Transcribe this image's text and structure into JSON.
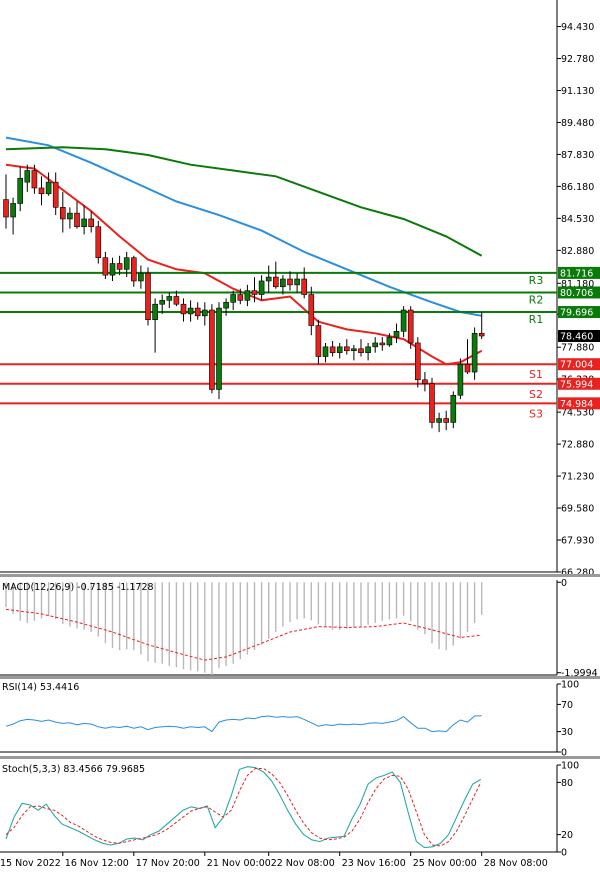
{
  "chart_data": [
    {
      "type": "candlestick",
      "panel": "price",
      "ylim": [
        66.28,
        95.8
      ],
      "y_ticks": [
        "94.430",
        "92.780",
        "91.130",
        "89.480",
        "87.830",
        "86.180",
        "84.530",
        "82.880",
        "81.180",
        "79.580",
        "77.880",
        "76.230",
        "74.530",
        "72.880",
        "71.230",
        "69.580",
        "67.930",
        "66.280"
      ],
      "x_ticks": [
        {
          "i": 0,
          "label": "15 Nov 2022"
        },
        {
          "i": 8,
          "label": "16 Nov 12:00"
        },
        {
          "i": 18,
          "label": "17 Nov 20:00"
        },
        {
          "i": 28,
          "label": "21 Nov 00:00"
        },
        {
          "i": 37,
          "label": "22 Nov 08:00"
        },
        {
          "i": 47,
          "label": "23 Nov 16:00"
        },
        {
          "i": 57,
          "label": "25 Nov 00:00"
        },
        {
          "i": 67,
          "label": "28 Nov 08:00"
        }
      ],
      "candles": [
        {
          "o": 85.5,
          "h": 86.8,
          "l": 84.0,
          "c": 84.6
        },
        {
          "o": 84.6,
          "h": 85.6,
          "l": 83.7,
          "c": 85.3
        },
        {
          "o": 85.3,
          "h": 87.2,
          "l": 84.9,
          "c": 86.6
        },
        {
          "o": 86.4,
          "h": 87.3,
          "l": 85.9,
          "c": 87.0
        },
        {
          "o": 87.0,
          "h": 87.3,
          "l": 85.8,
          "c": 86.1
        },
        {
          "o": 86.1,
          "h": 86.7,
          "l": 85.2,
          "c": 85.8
        },
        {
          "o": 85.8,
          "h": 86.9,
          "l": 85.7,
          "c": 86.4
        },
        {
          "o": 86.4,
          "h": 86.9,
          "l": 84.7,
          "c": 85.1
        },
        {
          "o": 85.1,
          "h": 85.9,
          "l": 83.8,
          "c": 84.5
        },
        {
          "o": 84.5,
          "h": 85.1,
          "l": 84.0,
          "c": 84.8
        },
        {
          "o": 84.8,
          "h": 85.4,
          "l": 84.0,
          "c": 84.1
        },
        {
          "o": 84.1,
          "h": 85.2,
          "l": 83.7,
          "c": 84.5
        },
        {
          "o": 84.5,
          "h": 84.9,
          "l": 83.8,
          "c": 84.1
        },
        {
          "o": 84.1,
          "h": 84.4,
          "l": 82.2,
          "c": 82.5
        },
        {
          "o": 82.5,
          "h": 82.8,
          "l": 81.4,
          "c": 81.6
        },
        {
          "o": 81.6,
          "h": 82.5,
          "l": 81.3,
          "c": 82.2
        },
        {
          "o": 82.2,
          "h": 82.6,
          "l": 81.6,
          "c": 81.9
        },
        {
          "o": 81.9,
          "h": 82.8,
          "l": 81.5,
          "c": 82.5
        },
        {
          "o": 82.5,
          "h": 82.6,
          "l": 81.0,
          "c": 81.3
        },
        {
          "o": 81.3,
          "h": 82.1,
          "l": 80.9,
          "c": 81.7
        },
        {
          "o": 81.7,
          "h": 82.0,
          "l": 79.0,
          "c": 79.3
        },
        {
          "o": 79.3,
          "h": 80.4,
          "l": 77.6,
          "c": 80.1
        },
        {
          "o": 80.1,
          "h": 80.6,
          "l": 79.6,
          "c": 80.3
        },
        {
          "o": 80.3,
          "h": 80.7,
          "l": 79.9,
          "c": 80.5
        },
        {
          "o": 80.5,
          "h": 80.8,
          "l": 80.0,
          "c": 80.1
        },
        {
          "o": 80.1,
          "h": 80.4,
          "l": 79.2,
          "c": 79.6
        },
        {
          "o": 79.6,
          "h": 80.3,
          "l": 79.2,
          "c": 79.9
        },
        {
          "o": 79.9,
          "h": 80.2,
          "l": 79.3,
          "c": 79.5
        },
        {
          "o": 79.5,
          "h": 80.2,
          "l": 79.0,
          "c": 79.8
        },
        {
          "o": 79.8,
          "h": 80.1,
          "l": 75.5,
          "c": 75.7
        },
        {
          "o": 75.7,
          "h": 80.2,
          "l": 75.2,
          "c": 79.9
        },
        {
          "o": 79.9,
          "h": 80.4,
          "l": 79.5,
          "c": 80.2
        },
        {
          "o": 80.2,
          "h": 80.8,
          "l": 79.8,
          "c": 80.6
        },
        {
          "o": 80.6,
          "h": 80.9,
          "l": 80.1,
          "c": 80.3
        },
        {
          "o": 80.3,
          "h": 81.1,
          "l": 80.0,
          "c": 80.8
        },
        {
          "o": 80.8,
          "h": 81.5,
          "l": 80.2,
          "c": 80.6
        },
        {
          "o": 80.6,
          "h": 81.6,
          "l": 80.3,
          "c": 81.3
        },
        {
          "o": 81.3,
          "h": 82.1,
          "l": 80.7,
          "c": 81.5
        },
        {
          "o": 81.5,
          "h": 82.3,
          "l": 80.9,
          "c": 81.0
        },
        {
          "o": 81.0,
          "h": 81.6,
          "l": 80.6,
          "c": 81.4
        },
        {
          "o": 81.4,
          "h": 81.8,
          "l": 80.8,
          "c": 81.1
        },
        {
          "o": 81.1,
          "h": 81.7,
          "l": 80.7,
          "c": 81.4
        },
        {
          "o": 81.4,
          "h": 82.0,
          "l": 80.4,
          "c": 80.6
        },
        {
          "o": 80.6,
          "h": 81.0,
          "l": 78.5,
          "c": 79.0
        },
        {
          "o": 79.0,
          "h": 79.3,
          "l": 77.0,
          "c": 77.4
        },
        {
          "o": 77.4,
          "h": 78.1,
          "l": 77.1,
          "c": 77.9
        },
        {
          "o": 77.9,
          "h": 78.2,
          "l": 77.4,
          "c": 77.6
        },
        {
          "o": 77.6,
          "h": 78.1,
          "l": 77.3,
          "c": 77.9
        },
        {
          "o": 77.9,
          "h": 78.3,
          "l": 77.5,
          "c": 77.7
        },
        {
          "o": 77.7,
          "h": 78.0,
          "l": 77.2,
          "c": 77.8
        },
        {
          "o": 77.8,
          "h": 78.3,
          "l": 77.4,
          "c": 77.6
        },
        {
          "o": 77.6,
          "h": 78.1,
          "l": 77.2,
          "c": 77.9
        },
        {
          "o": 77.9,
          "h": 78.4,
          "l": 77.6,
          "c": 78.1
        },
        {
          "o": 78.1,
          "h": 78.4,
          "l": 77.7,
          "c": 78.0
        },
        {
          "o": 78.0,
          "h": 78.6,
          "l": 77.9,
          "c": 78.4
        },
        {
          "o": 78.4,
          "h": 79.1,
          "l": 78.1,
          "c": 78.7
        },
        {
          "o": 78.7,
          "h": 80.0,
          "l": 78.4,
          "c": 79.8
        },
        {
          "o": 79.8,
          "h": 80.0,
          "l": 77.8,
          "c": 78.1
        },
        {
          "o": 78.1,
          "h": 78.4,
          "l": 75.8,
          "c": 76.2
        },
        {
          "o": 76.2,
          "h": 76.6,
          "l": 75.6,
          "c": 76.0
        },
        {
          "o": 76.0,
          "h": 76.3,
          "l": 73.7,
          "c": 74.0
        },
        {
          "o": 74.0,
          "h": 74.5,
          "l": 73.5,
          "c": 74.2
        },
        {
          "o": 74.2,
          "h": 74.6,
          "l": 73.6,
          "c": 74.0
        },
        {
          "o": 74.0,
          "h": 75.6,
          "l": 73.7,
          "c": 75.4
        },
        {
          "o": 75.4,
          "h": 77.3,
          "l": 75.2,
          "c": 77.0
        },
        {
          "o": 77.0,
          "h": 78.3,
          "l": 76.5,
          "c": 76.6
        },
        {
          "o": 76.6,
          "h": 78.9,
          "l": 76.2,
          "c": 78.6
        },
        {
          "o": 78.6,
          "h": 79.7,
          "l": 78.3,
          "c": 78.46
        }
      ],
      "moving_averages": [
        {
          "color": "#2a8fdc",
          "values": [
            [
              0,
              88.7
            ],
            [
              6,
              88.3
            ],
            [
              12,
              87.4
            ],
            [
              18,
              86.4
            ],
            [
              24,
              85.4
            ],
            [
              30,
              84.7
            ],
            [
              36,
              83.9
            ],
            [
              42,
              82.8
            ],
            [
              48,
              81.9
            ],
            [
              54,
              81.0
            ],
            [
              60,
              80.2
            ],
            [
              64,
              79.7
            ],
            [
              67,
              79.5
            ]
          ]
        },
        {
          "color": "#0a7a0a",
          "values": [
            [
              0,
              88.1
            ],
            [
              8,
              88.2
            ],
            [
              14,
              88.1
            ],
            [
              20,
              87.8
            ],
            [
              26,
              87.3
            ],
            [
              32,
              87.0
            ],
            [
              38,
              86.7
            ],
            [
              44,
              85.9
            ],
            [
              50,
              85.1
            ],
            [
              56,
              84.5
            ],
            [
              62,
              83.6
            ],
            [
              67,
              82.6
            ]
          ]
        },
        {
          "color": "#e8231f",
          "values": [
            [
              0,
              87.3
            ],
            [
              4,
              87.1
            ],
            [
              8,
              86.0
            ],
            [
              12,
              84.9
            ],
            [
              16,
              83.6
            ],
            [
              20,
              82.4
            ],
            [
              24,
              81.9
            ],
            [
              28,
              81.7
            ],
            [
              32,
              80.9
            ],
            [
              36,
              80.3
            ],
            [
              40,
              80.5
            ],
            [
              44,
              79.2
            ],
            [
              48,
              78.8
            ],
            [
              52,
              78.6
            ],
            [
              56,
              78.3
            ],
            [
              60,
              77.4
            ],
            [
              62,
              77.0
            ],
            [
              64,
              77.1
            ],
            [
              67,
              77.7
            ]
          ]
        }
      ],
      "levels": [
        {
          "name": "R3",
          "value": 81.716,
          "label": "81.716",
          "color": "#0a7a0a"
        },
        {
          "name": "R2",
          "value": 80.706,
          "label": "80.706",
          "color": "#0a7a0a"
        },
        {
          "name": "R1",
          "value": 79.696,
          "label": "79.696",
          "color": "#0a7a0a"
        },
        {
          "name": "S1",
          "value": 77.004,
          "label": "77.004",
          "color": "#e8231f"
        },
        {
          "name": "S2",
          "value": 75.994,
          "label": "75.994",
          "color": "#e8231f"
        },
        {
          "name": "S3",
          "value": 74.984,
          "label": "74.984",
          "color": "#e8231f"
        }
      ],
      "last_price": {
        "value": 78.46,
        "label": "78.460"
      },
      "colors": {
        "bull": "#0a7a0a",
        "bear": "#e8231f"
      }
    },
    {
      "type": "histogram",
      "panel": "macd",
      "title": "MACD(12,26,9) -0.7185 -1.1728",
      "ylim": [
        -2.05,
        0.05
      ],
      "y_ticks": [
        "0",
        "-1.9994"
      ],
      "histogram": [
        -0.55,
        -0.7,
        -0.85,
        -0.9,
        -0.85,
        -0.8,
        -0.75,
        -0.82,
        -0.92,
        -0.98,
        -1.02,
        -1.05,
        -1.1,
        -1.2,
        -1.35,
        -1.45,
        -1.5,
        -1.48,
        -1.5,
        -1.6,
        -1.75,
        -1.78,
        -1.8,
        -1.85,
        -1.88,
        -1.92,
        -1.95,
        -1.97,
        -2.0,
        -2.05,
        -1.9,
        -1.85,
        -1.8,
        -1.7,
        -1.6,
        -1.5,
        -1.38,
        -1.25,
        -1.1,
        -0.98,
        -0.88,
        -0.82,
        -0.8,
        -0.84,
        -0.93,
        -1.0,
        -1.05,
        -1.05,
        -1.03,
        -1.0,
        -0.98,
        -0.94,
        -0.9,
        -0.85,
        -0.82,
        -0.8,
        -0.74,
        -0.86,
        -1.05,
        -1.15,
        -1.35,
        -1.48,
        -1.5,
        -1.4,
        -1.25,
        -1.1,
        -0.9,
        -0.72
      ],
      "signal": [
        [
          0,
          -0.6
        ],
        [
          5,
          -0.7
        ],
        [
          10,
          -0.88
        ],
        [
          15,
          -1.1
        ],
        [
          20,
          -1.38
        ],
        [
          25,
          -1.6
        ],
        [
          28,
          -1.72
        ],
        [
          31,
          -1.65
        ],
        [
          36,
          -1.35
        ],
        [
          40,
          -1.1
        ],
        [
          44,
          -0.98
        ],
        [
          48,
          -1.0
        ],
        [
          52,
          -0.98
        ],
        [
          56,
          -0.9
        ],
        [
          60,
          -1.05
        ],
        [
          64,
          -1.22
        ],
        [
          67,
          -1.17
        ]
      ]
    },
    {
      "type": "line",
      "panel": "rsi",
      "title": "RSI(14) 53.4416",
      "ylim": [
        0,
        100
      ],
      "y_ticks": [
        "100",
        "70",
        "30",
        "0"
      ],
      "values": [
        38,
        41,
        46,
        48,
        47,
        45,
        47,
        44,
        42,
        43,
        40,
        42,
        41,
        37,
        35,
        37,
        36,
        38,
        35,
        37,
        33,
        36,
        37,
        38,
        37,
        35,
        37,
        36,
        37,
        30,
        44,
        47,
        48,
        47,
        50,
        49,
        52,
        53,
        51,
        52,
        51,
        52,
        48,
        43,
        38,
        40,
        39,
        41,
        40,
        41,
        40,
        42,
        43,
        42,
        44,
        46,
        52,
        43,
        35,
        35,
        30,
        31,
        30,
        40,
        47,
        44,
        53,
        53.4
      ]
    },
    {
      "type": "line",
      "panel": "stoch",
      "title": "Stoch(5,3,3) 83.4566 79.9685",
      "ylim": [
        0,
        100
      ],
      "y_ticks": [
        "100",
        "80",
        "20",
        "0"
      ],
      "series": [
        {
          "name": "%K",
          "values": [
            15,
            40,
            56,
            54,
            48,
            55,
            42,
            32,
            28,
            24,
            19,
            14,
            10,
            8,
            10,
            15,
            16,
            14,
            20,
            24,
            32,
            40,
            48,
            52,
            50,
            53,
            28,
            40,
            65,
            95,
            98,
            97,
            92,
            82,
            66,
            48,
            32,
            20,
            14,
            12,
            16,
            17,
            18,
            38,
            55,
            78,
            85,
            88,
            92,
            80,
            45,
            12,
            5,
            6,
            10,
            20,
            40,
            60,
            78,
            83.5
          ]
        },
        {
          "name": "%D",
          "values": [
            20,
            28,
            42,
            52,
            53,
            50,
            48,
            42,
            34,
            30,
            24,
            18,
            14,
            11,
            10,
            12,
            14,
            16,
            18,
            21,
            26,
            33,
            40,
            47,
            50,
            52,
            46,
            40,
            48,
            70,
            88,
            96,
            96,
            90,
            80,
            65,
            48,
            33,
            22,
            16,
            14,
            15,
            17,
            24,
            38,
            57,
            73,
            84,
            88,
            87,
            72,
            46,
            20,
            8,
            7,
            12,
            24,
            42,
            61,
            80
          ]
        }
      ]
    }
  ]
}
